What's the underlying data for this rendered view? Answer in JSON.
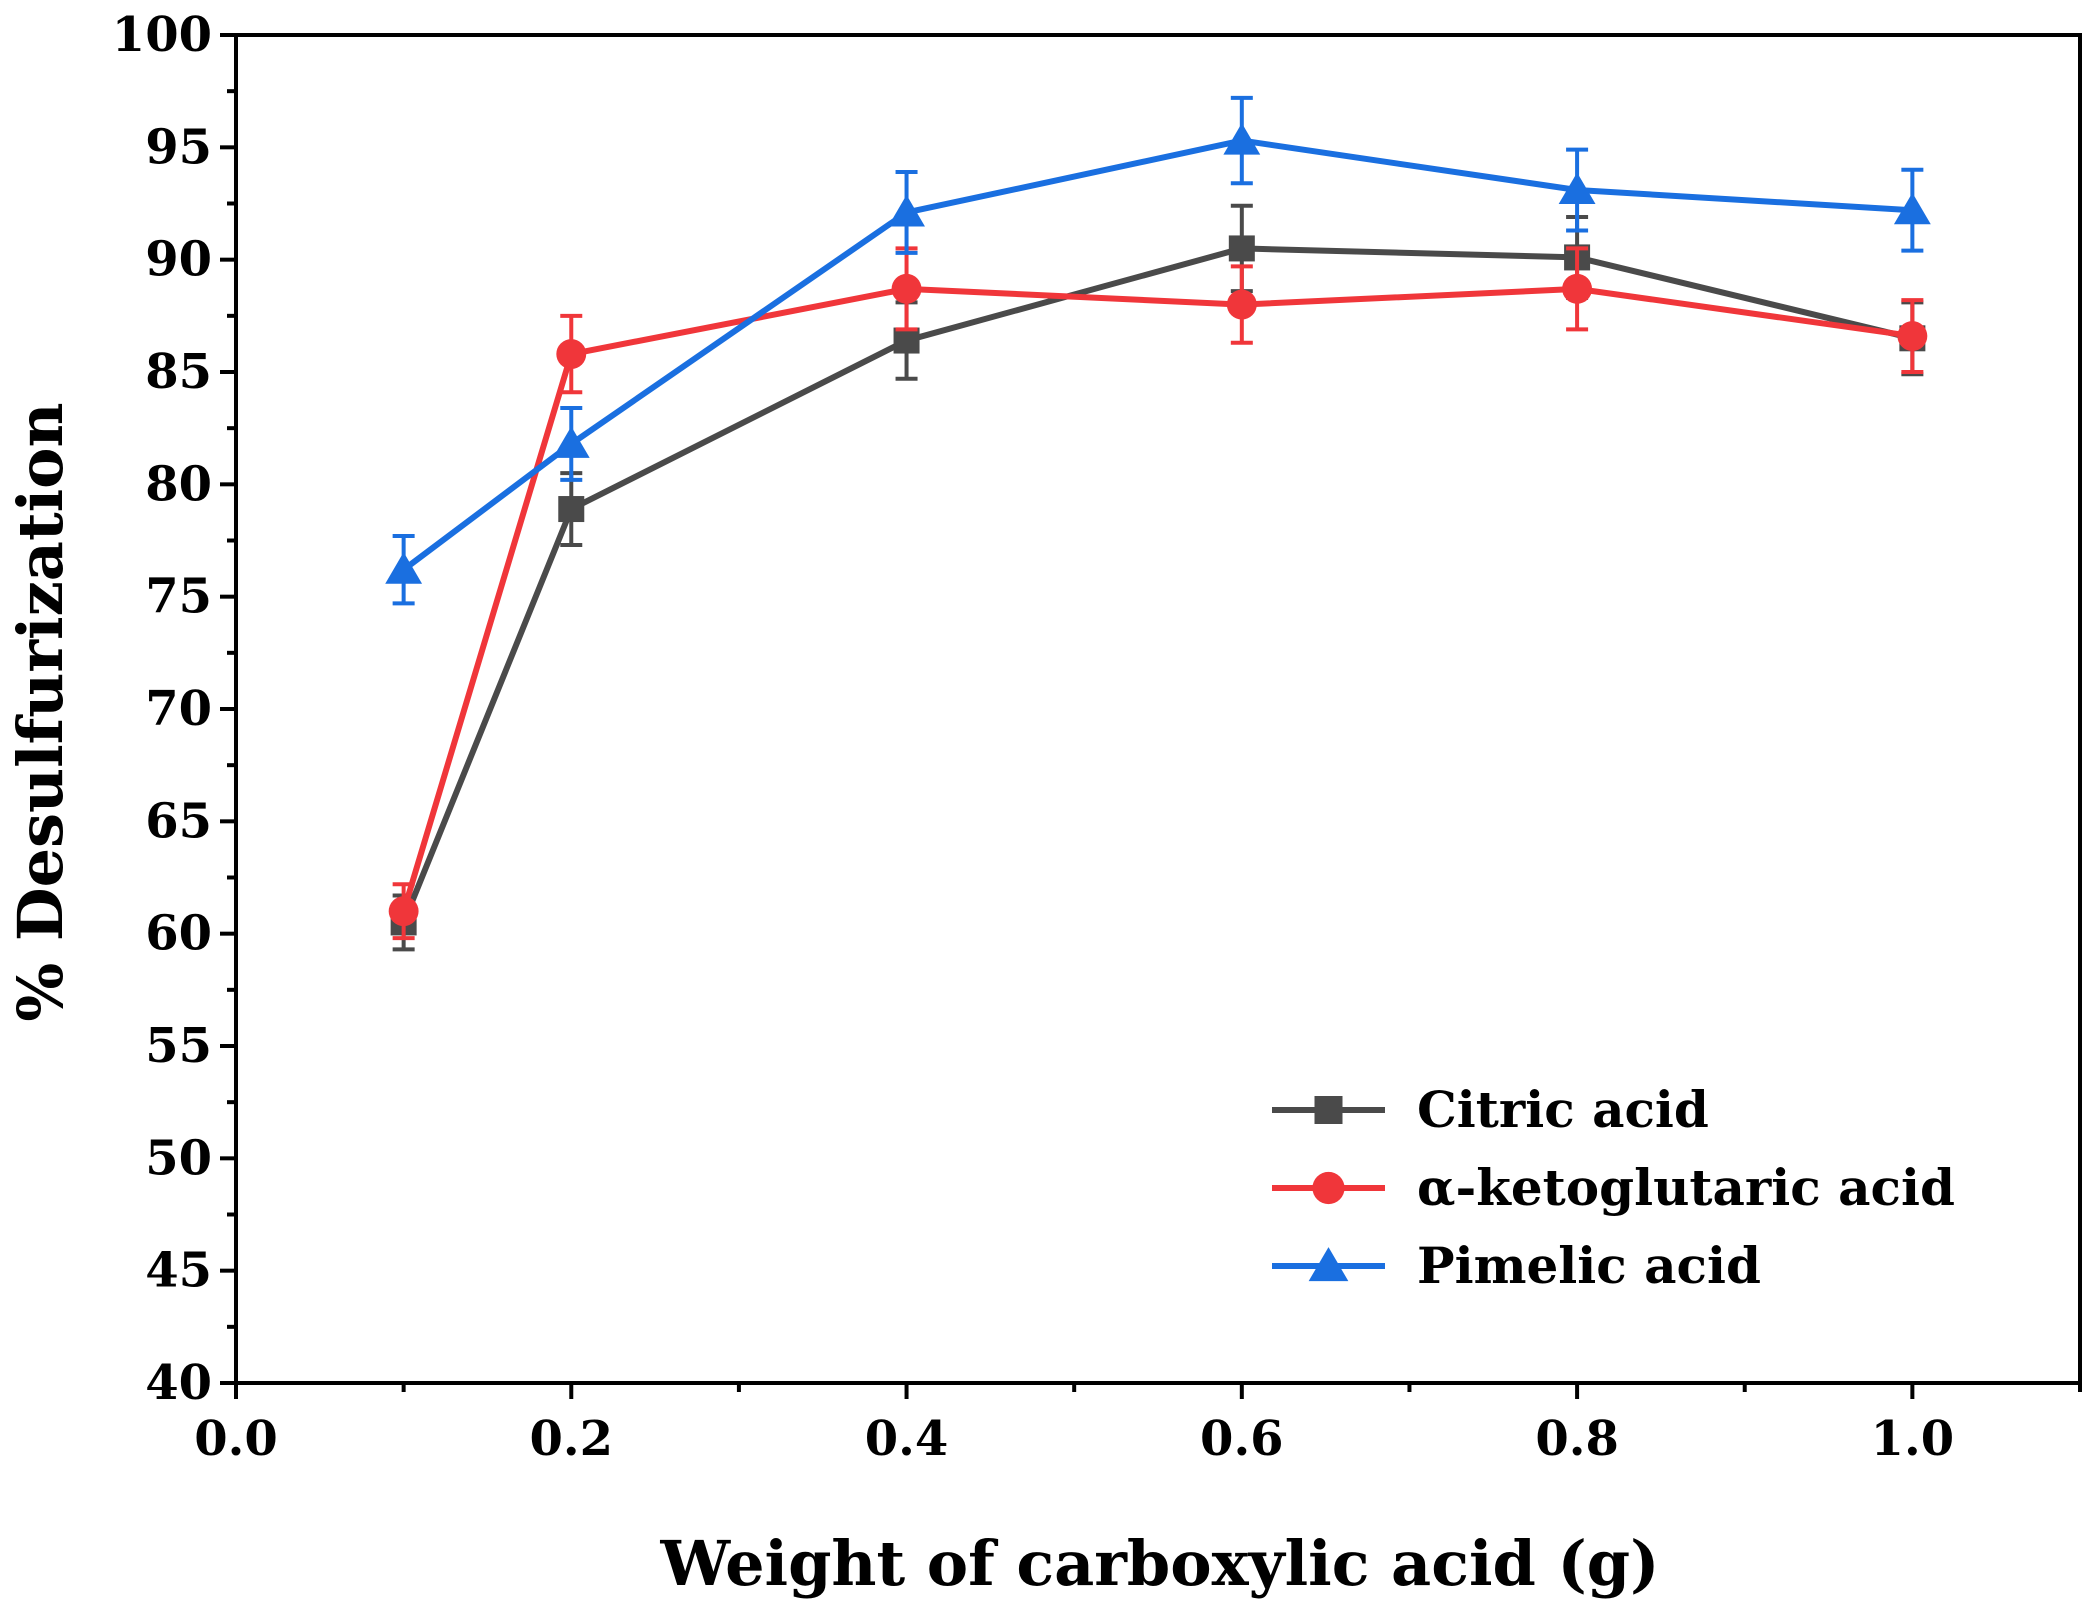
{
  "chart_data": {
    "type": "line",
    "title": "",
    "xlabel": "Weight of carboxylic acid (g)",
    "ylabel": "% Desulfurization",
    "xlim": [
      0.0,
      1.1
    ],
    "ylim": [
      40,
      100
    ],
    "xticks": [
      "0.0",
      "0.2",
      "0.4",
      "0.6",
      "0.8",
      "1.0"
    ],
    "yticks": [
      "40",
      "45",
      "50",
      "55",
      "60",
      "65",
      "70",
      "75",
      "80",
      "85",
      "90",
      "95",
      "100"
    ],
    "grid": false,
    "legend_position": "bottom-right",
    "x": [
      0.1,
      0.2,
      0.4,
      0.6,
      0.8,
      1.0
    ],
    "series": [
      {
        "name": "Citric acid",
        "color": "#4a4a4a",
        "marker": "square",
        "values": [
          60.5,
          78.9,
          86.4,
          90.5,
          90.1,
          86.5
        ],
        "errors": [
          1.2,
          1.6,
          1.7,
          1.9,
          1.8,
          1.6
        ]
      },
      {
        "name": "α-ketoglutaric acid",
        "color": "#f0363a",
        "marker": "circle",
        "values": [
          61.0,
          85.8,
          88.7,
          88.0,
          88.7,
          86.6
        ],
        "errors": [
          1.2,
          1.7,
          1.8,
          1.7,
          1.8,
          1.6
        ]
      },
      {
        "name": "Pimelic acid",
        "color": "#1a6fe0",
        "marker": "triangle",
        "values": [
          76.2,
          81.8,
          92.1,
          95.3,
          93.1,
          92.2
        ],
        "errors": [
          1.5,
          1.6,
          1.8,
          1.9,
          1.8,
          1.8
        ]
      }
    ]
  }
}
